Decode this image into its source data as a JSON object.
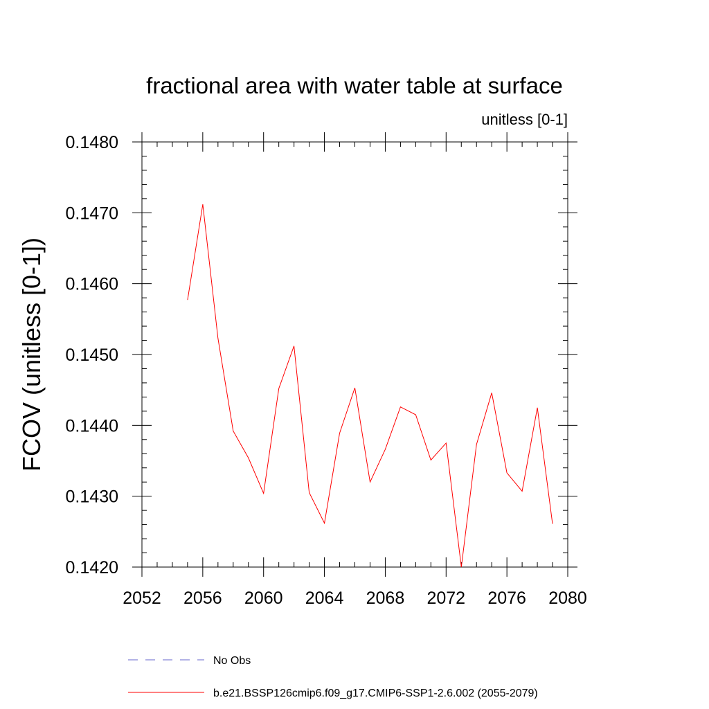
{
  "chart_data": {
    "type": "line",
    "title": "fractional area with water table at surface",
    "units_label": "unitless [0-1]",
    "xlabel": "",
    "ylabel": "FCOV  (unitless [0-1])",
    "xlim": [
      2052,
      2080
    ],
    "ylim": [
      0.142,
      0.148
    ],
    "xticks": [
      2052,
      2056,
      2060,
      2064,
      2068,
      2072,
      2076,
      2080
    ],
    "xtick_labels": [
      "2052",
      "2056",
      "2060",
      "2064",
      "2068",
      "2072",
      "2076",
      "2080"
    ],
    "yticks": [
      0.142,
      0.143,
      0.144,
      0.145,
      0.146,
      0.147,
      0.148
    ],
    "ytick_labels": [
      "0.1420",
      "0.1430",
      "0.1440",
      "0.1450",
      "0.1460",
      "0.1470",
      "0.1480"
    ],
    "series": [
      {
        "name": "b.e21.BSSP126cmip6.f09_g17.CMIP6-SSP1-2.6.002 (2055-2079)",
        "color": "#ff0000",
        "style": "solid",
        "x": [
          2055,
          2056,
          2057,
          2058,
          2059,
          2060,
          2061,
          2062,
          2063,
          2064,
          2065,
          2066,
          2067,
          2068,
          2069,
          2070,
          2071,
          2072,
          2073,
          2074,
          2075,
          2076,
          2077,
          2078,
          2079
        ],
        "values": [
          0.14577,
          0.14712,
          0.14523,
          0.14392,
          0.14354,
          0.14304,
          0.14452,
          0.14512,
          0.14305,
          0.14262,
          0.14389,
          0.14453,
          0.1432,
          0.14366,
          0.14426,
          0.14415,
          0.14351,
          0.14375,
          0.142,
          0.14373,
          0.14446,
          0.14333,
          0.14307,
          0.14425,
          0.14261
        ]
      }
    ],
    "legend": [
      {
        "label": "No Obs",
        "color": "#6666cc",
        "style": "dashed"
      },
      {
        "label": "b.e21.BSSP126cmip6.f09_g17.CMIP6-SSP1-2.6.002 (2055-2079)",
        "color": "#ff0000",
        "style": "solid"
      }
    ],
    "legend_position": "bottom"
  }
}
